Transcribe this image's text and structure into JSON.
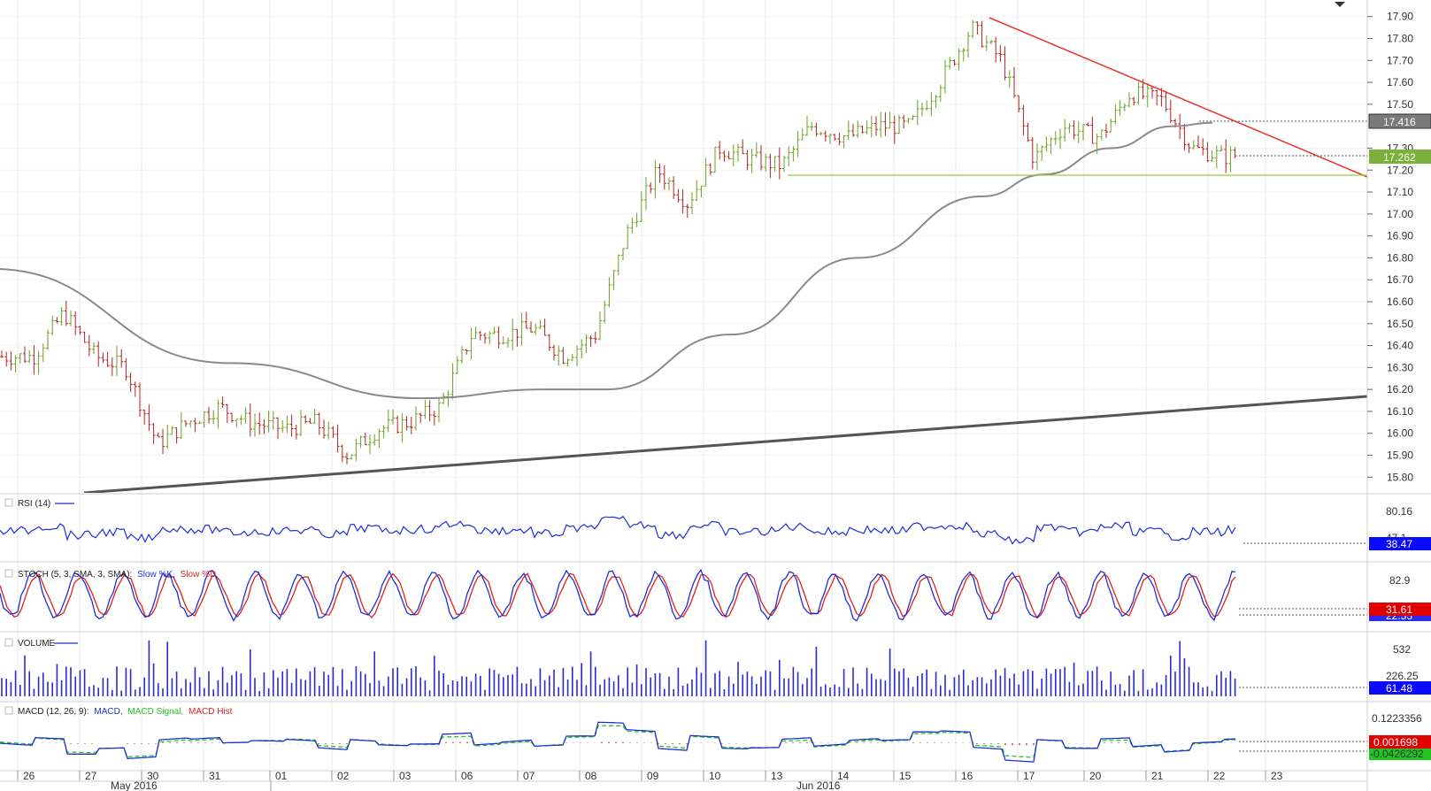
{
  "colors": {
    "up": "#6aa121",
    "down": "#b22222",
    "ma": "#8a8a8a",
    "resistance": "#e8322b",
    "support_h": "#9acd32",
    "trend_long": "#555555",
    "rsi": "#1f2fd6",
    "stoch_k": "#1f2fd6",
    "stoch_d": "#e02020",
    "volume": "#2a2ad8",
    "macd": "#1f2fd6",
    "macd_signal": "#22c422",
    "macd_hist": "#e02020"
  },
  "price_axis": {
    "ticks": [
      "17.90",
      "17.80",
      "17.70",
      "17.60",
      "17.50",
      "17.30",
      "17.20",
      "17.10",
      "17.00",
      "16.90",
      "16.80",
      "16.70",
      "16.60",
      "16.50",
      "16.40",
      "16.30",
      "16.20",
      "16.10",
      "16.00",
      "15.90",
      "15.80"
    ],
    "ylim": [
      15.765,
      17.915
    ],
    "box_ma": "17.416",
    "box_last": "17.262",
    "ma_value": 17.416,
    "last_value": 17.262
  },
  "panels": {
    "rsi": {
      "label": "RSI (14)",
      "ticks": [
        "80.16",
        "47.1"
      ],
      "value": "38.47"
    },
    "stoch": {
      "label_prefix": "STOCH (5, 3, SMA, 3, SMA):",
      "label_k": "Slow %K,",
      "label_d": "Slow %D",
      "ticks": [
        "82.9"
      ],
      "value_d": "31.61",
      "value_k": "22.53"
    },
    "volume": {
      "label": "VOLUME",
      "ticks": [
        "532",
        "226.25"
      ],
      "value": "61.48"
    },
    "macd": {
      "label_prefix": "MACD (12, 26, 9):",
      "label_macd": "MACD,",
      "label_signal": "MACD Signal,",
      "label_hist": "MACD Hist",
      "ticks": [
        "0.1223356"
      ],
      "value_hist": "0.001698",
      "value_macd": "-0.0426292"
    }
  },
  "time_axis": {
    "days": [
      "26",
      "27",
      "30",
      "31",
      "01",
      "02",
      "03",
      "06",
      "07",
      "08",
      "09",
      "10",
      "13",
      "14",
      "15",
      "16",
      "17",
      "20",
      "21",
      "22",
      "23"
    ],
    "months": [
      "May 2016",
      "Jun 2016"
    ]
  },
  "chart_data": {
    "type": "candlestick",
    "instrument_note": "",
    "price_range": [
      15.8,
      17.9
    ],
    "close_path": [
      {
        "x": "26",
        "y": 16.35
      },
      {
        "x": "26",
        "y": 16.55
      },
      {
        "x": "27",
        "y": 16.35
      },
      {
        "x": "27",
        "y": 16.3
      },
      {
        "x": "30",
        "y": 15.95
      },
      {
        "x": "30",
        "y": 16.05
      },
      {
        "x": "31",
        "y": 16.12
      },
      {
        "x": "31",
        "y": 16.05
      },
      {
        "x": "01",
        "y": 16.02
      },
      {
        "x": "01",
        "y": 16.05
      },
      {
        "x": "02",
        "y": 15.9
      },
      {
        "x": "02",
        "y": 16.02
      },
      {
        "x": "03",
        "y": 16.05
      },
      {
        "x": "03",
        "y": 16.12
      },
      {
        "x": "06",
        "y": 16.45
      },
      {
        "x": "06",
        "y": 16.45
      },
      {
        "x": "07",
        "y": 16.48
      },
      {
        "x": "07",
        "y": 16.35
      },
      {
        "x": "08",
        "y": 16.45
      },
      {
        "x": "08",
        "y": 16.9
      },
      {
        "x": "09",
        "y": 17.2
      },
      {
        "x": "09",
        "y": 17.05
      },
      {
        "x": "10",
        "y": 17.3
      },
      {
        "x": "10",
        "y": 17.25
      },
      {
        "x": "13",
        "y": 17.22
      },
      {
        "x": "13",
        "y": 17.4
      },
      {
        "x": "14",
        "y": 17.35
      },
      {
        "x": "14",
        "y": 17.4
      },
      {
        "x": "15",
        "y": 17.4
      },
      {
        "x": "15",
        "y": 17.6
      },
      {
        "x": "16",
        "y": 17.85
      },
      {
        "x": "16",
        "y": 17.7
      },
      {
        "x": "17",
        "y": 17.25
      },
      {
        "x": "17",
        "y": 17.4
      },
      {
        "x": "20",
        "y": 17.35
      },
      {
        "x": "20",
        "y": 17.55
      },
      {
        "x": "21",
        "y": 17.52
      },
      {
        "x": "21",
        "y": 17.3
      },
      {
        "x": "22",
        "y": 17.26
      }
    ],
    "moving_average": [
      {
        "x": "26",
        "y": 16.75
      },
      {
        "x": "31",
        "y": 16.32
      },
      {
        "x": "03",
        "y": 16.16
      },
      {
        "x": "07",
        "y": 16.2
      },
      {
        "x": "08",
        "y": 16.2
      },
      {
        "x": "10",
        "y": 16.45
      },
      {
        "x": "14",
        "y": 16.8
      },
      {
        "x": "16",
        "y": 17.08
      },
      {
        "x": "17",
        "y": 17.18
      },
      {
        "x": "20",
        "y": 17.3
      },
      {
        "x": "21",
        "y": 17.4
      },
      {
        "x": "22",
        "y": 17.416
      }
    ]
  }
}
